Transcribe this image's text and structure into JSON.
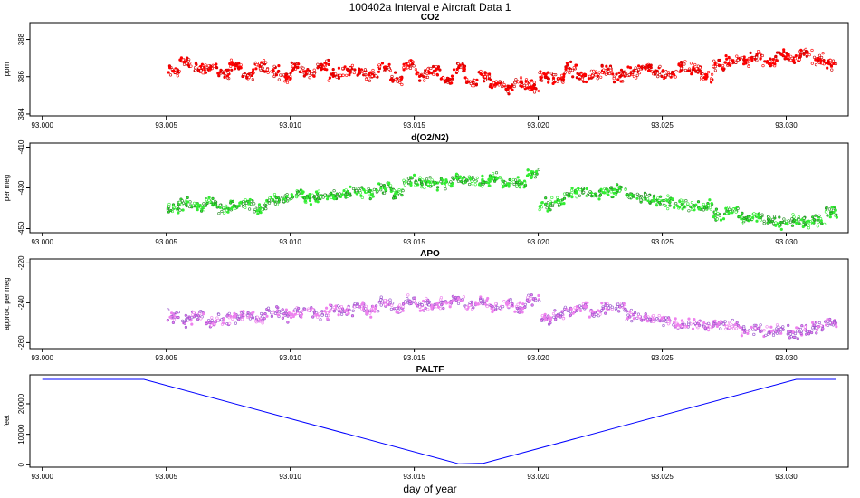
{
  "figure": {
    "title": "100402a   Interval e Aircraft Data 1",
    "xlabel": "day of year",
    "x_tick_labels": [
      "93.000",
      "93.005",
      "93.010",
      "93.015",
      "93.020",
      "93.025",
      "93.030"
    ]
  },
  "chart_data": [
    {
      "type": "scatter",
      "title": "CO2",
      "ylabel": "ppm",
      "xlim": [
        92.9995,
        93.0325
      ],
      "ylim": [
        383.9,
        388.9
      ],
      "y_ticks": [
        384,
        386,
        388
      ],
      "y_tick_labels": [
        "384",
        "386",
        "388"
      ],
      "series": [
        {
          "name": "CO2",
          "color": "#ff0000",
          "x": [
            93.0053,
            93.0058,
            93.0063,
            93.0068,
            93.0073,
            93.0078,
            93.0083,
            93.0088,
            93.0093,
            93.0098,
            93.0103,
            93.0108,
            93.0113,
            93.0118,
            93.0123,
            93.0128,
            93.0133,
            93.0138,
            93.0143,
            93.0148,
            93.0153,
            93.0158,
            93.0163,
            93.0168,
            93.0173,
            93.0178,
            93.0183,
            93.0188,
            93.0193,
            93.0198,
            93.0203,
            93.0208,
            93.0213,
            93.0218,
            93.0223,
            93.0228,
            93.0233,
            93.0238,
            93.0243,
            93.0248,
            93.0253,
            93.0258,
            93.0263,
            93.0268,
            93.0273,
            93.0278,
            93.0283,
            93.0288,
            93.0293,
            93.0298,
            93.0303,
            93.0308,
            93.0313,
            93.0318
          ],
          "y": [
            386.3,
            386.8,
            386.4,
            386.5,
            386.2,
            386.6,
            386.1,
            386.6,
            386.3,
            386.0,
            386.5,
            386.2,
            386.6,
            386.1,
            386.4,
            386.3,
            386.0,
            386.5,
            385.9,
            386.6,
            386.1,
            386.3,
            385.8,
            386.5,
            385.7,
            386.0,
            385.6,
            385.4,
            385.7,
            385.5,
            386.0,
            385.9,
            386.4,
            386.0,
            386.1,
            386.4,
            386.0,
            386.2,
            386.5,
            386.3,
            386.1,
            386.5,
            386.4,
            386.0,
            386.6,
            386.8,
            386.9,
            387.1,
            386.8,
            387.2,
            387.0,
            387.3,
            386.9,
            386.7
          ]
        }
      ]
    },
    {
      "type": "scatter",
      "title": "d(O2/N2)",
      "ylabel": "per meg",
      "xlim": [
        92.9995,
        93.0325
      ],
      "ylim": [
        -452,
        -408
      ],
      "y_ticks": [
        -450,
        -430,
        -410
      ],
      "y_tick_labels": [
        "-450",
        "-430",
        "-410"
      ],
      "series": [
        {
          "name": "d(O2/N2)",
          "color": "#33ee33",
          "x": [
            93.0053,
            93.0058,
            93.0063,
            93.0068,
            93.0073,
            93.0078,
            93.0083,
            93.0088,
            93.0093,
            93.0098,
            93.0103,
            93.0108,
            93.0113,
            93.0118,
            93.0123,
            93.0128,
            93.0133,
            93.0138,
            93.0143,
            93.0148,
            93.0153,
            93.0158,
            93.0163,
            93.0168,
            93.0173,
            93.0178,
            93.0183,
            93.0188,
            93.0193,
            93.0198,
            93.0203,
            93.0208,
            93.0213,
            93.0218,
            93.0223,
            93.0228,
            93.0233,
            93.0238,
            93.0243,
            93.0248,
            93.0253,
            93.0258,
            93.0263,
            93.0268,
            93.0273,
            93.0278,
            93.0283,
            93.0288,
            93.0293,
            93.0298,
            93.0303,
            93.0308,
            93.0313,
            93.0318
          ],
          "y": [
            -440,
            -438,
            -439,
            -437,
            -440,
            -439,
            -437,
            -440,
            -436,
            -435,
            -433,
            -435,
            -434,
            -434,
            -433,
            -432,
            -433,
            -430,
            -432,
            -427,
            -428,
            -428,
            -427,
            -425,
            -426,
            -427,
            -425,
            -428,
            -428,
            -423,
            -438,
            -437,
            -433,
            -432,
            -433,
            -432,
            -431,
            -434,
            -435,
            -436,
            -437,
            -438,
            -439,
            -439,
            -443,
            -441,
            -445,
            -444,
            -446,
            -447,
            -446,
            -447,
            -446,
            -442
          ]
        }
      ]
    },
    {
      "type": "scatter",
      "title": "APO",
      "ylabel": "approx. per meg",
      "xlim": [
        92.9995,
        93.0325
      ],
      "ylim": [
        -263,
        -218
      ],
      "y_ticks": [
        -260,
        -240,
        -220
      ],
      "y_tick_labels": [
        "-260",
        "-240",
        "-220"
      ],
      "series": [
        {
          "name": "APO",
          "color": "#ee82ee",
          "x": [
            93.0053,
            93.0058,
            93.0063,
            93.0068,
            93.0073,
            93.0078,
            93.0083,
            93.0088,
            93.0093,
            93.0098,
            93.0103,
            93.0108,
            93.0113,
            93.0118,
            93.0123,
            93.0128,
            93.0133,
            93.0138,
            93.0143,
            93.0148,
            93.0153,
            93.0158,
            93.0163,
            93.0168,
            93.0173,
            93.0178,
            93.0183,
            93.0188,
            93.0193,
            93.0198,
            93.0203,
            93.0208,
            93.0213,
            93.0218,
            93.0223,
            93.0228,
            93.0233,
            93.0238,
            93.0243,
            93.0248,
            93.0253,
            93.0258,
            93.0263,
            93.0268,
            93.0273,
            93.0278,
            93.0283,
            93.0288,
            93.0293,
            93.0298,
            93.0303,
            93.0308,
            93.0313,
            93.0318
          ],
          "y": [
            -247,
            -249,
            -246,
            -250,
            -248,
            -247,
            -246,
            -248,
            -245,
            -246,
            -245,
            -244,
            -246,
            -243,
            -244,
            -242,
            -244,
            -240,
            -243,
            -239,
            -241,
            -242,
            -240,
            -238,
            -241,
            -240,
            -242,
            -240,
            -243,
            -238,
            -248,
            -246,
            -244,
            -242,
            -245,
            -243,
            -242,
            -246,
            -247,
            -248,
            -249,
            -251,
            -250,
            -252,
            -250,
            -252,
            -254,
            -253,
            -255,
            -253,
            -255,
            -254,
            -252,
            -250
          ]
        }
      ]
    },
    {
      "type": "line",
      "title": "PALTF",
      "ylabel": "feet",
      "xlim": [
        92.9995,
        93.0325
      ],
      "ylim": [
        -800,
        29500
      ],
      "y_ticks": [
        0,
        10000,
        20000
      ],
      "y_tick_labels": [
        "0",
        "10000",
        "20000"
      ],
      "series": [
        {
          "name": "PALTF",
          "color": "#0000ff",
          "x": [
            93.0,
            93.0041,
            93.0168,
            93.0178,
            93.0304,
            93.032
          ],
          "y": [
            28000,
            28000,
            300,
            500,
            28000,
            28000
          ]
        }
      ]
    }
  ]
}
